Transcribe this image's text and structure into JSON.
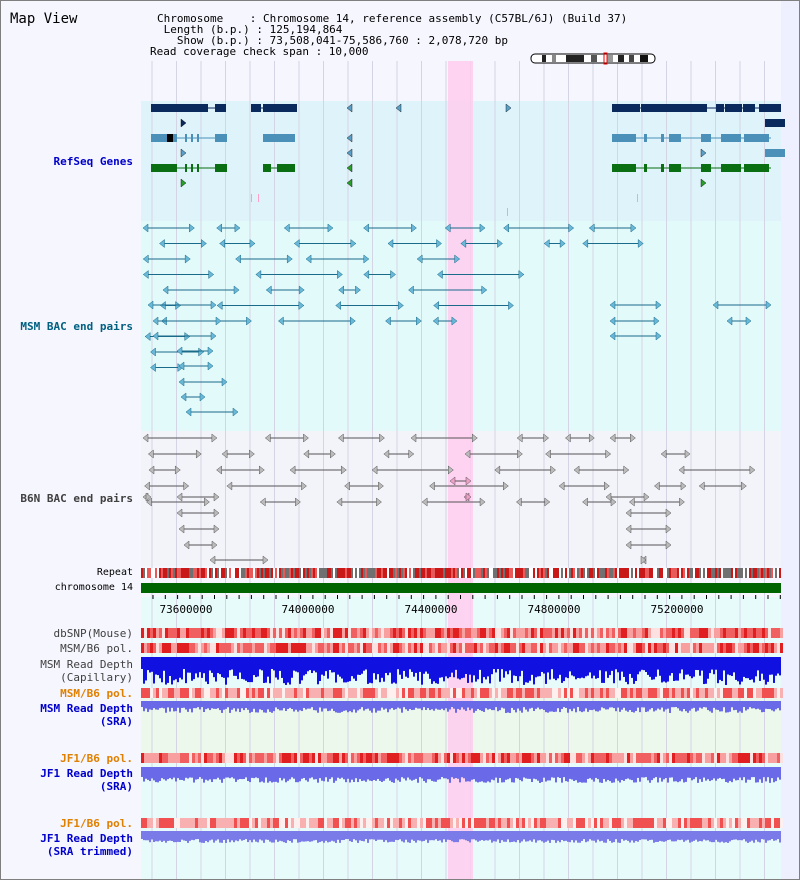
{
  "view": {
    "title": "Map View",
    "info_lines": [
      "Chromosome    : Chromosome 14, reference assembly (C57BL/6J) (Build 37)",
      " Length (b.p.) : 125,194,864",
      "   Show (b.p.) : 73,508,041-75,586,760 : 2,078,720 bp",
      "Read coverage check span : 10,000"
    ]
  },
  "tracks": {
    "refseq": "RefSeq Genes",
    "msm_bac": "MSM BAC end pairs",
    "b6n_bac": "B6N BAC end pairs",
    "repeat": "Repeat",
    "chromosome": "chromosome 14",
    "dbsnp": "dbSNP(Mouse)",
    "msm_b6_pol": "MSM/B6 pol.",
    "msm_depth_cap_1": "MSM Read Depth",
    "msm_depth_cap_2": "(Capillary)",
    "msm_b6_pol_2": "MSM/B6 pol.",
    "msm_depth_sra_1": "MSM Read Depth",
    "msm_depth_sra_2": "(SRA)",
    "jf1_b6_pol": "JF1/B6 pol.",
    "jf1_depth_sra_1": "JF1 Read Depth",
    "jf1_depth_sra_2": "(SRA)",
    "jf1_b6_pol_2": "JF1/B6 pol.",
    "jf1_depth_trim_1": "JF1 Read Depth",
    "jf1_depth_trim_2": "(SRA trimmed)"
  },
  "axis": {
    "ticks": [
      "73600000",
      "74000000",
      "74400000",
      "74800000",
      "75200000"
    ]
  },
  "colors": {
    "label_blue": "#0000cc",
    "label_teal": "#006080",
    "label_dark": "#404040",
    "label_orange": "#e08000",
    "chromosome_band": "#006400",
    "highlight": "#ffccee"
  }
}
